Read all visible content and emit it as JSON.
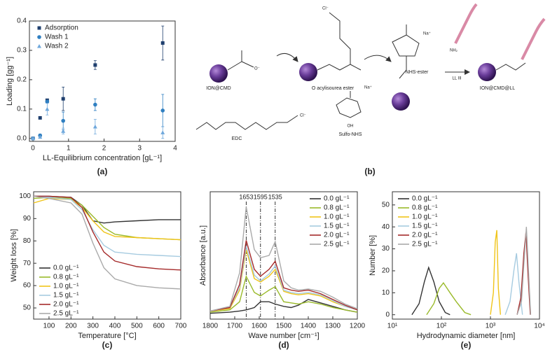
{
  "chart_data": [
    {
      "type": "scatter",
      "panel": "(a)",
      "xlabel": "LL-Equilibrium concentration [gL⁻¹]",
      "ylabel": "Loading [gg⁻¹]",
      "x": [
        0,
        0.2,
        0.4,
        0.85,
        1.75,
        3.65
      ],
      "series": [
        {
          "name": "Adsorption",
          "color": "#1f3f6e",
          "marker": "square",
          "values": [
            0,
            0.07,
            0.13,
            0.135,
            0.25,
            0.325
          ],
          "errors": [
            0,
            0,
            0,
            0.04,
            0.015,
            0.058
          ]
        },
        {
          "name": "Wash 1",
          "color": "#2f7fc1",
          "marker": "circle",
          "values": [
            0,
            0.01,
            0.125,
            0.06,
            0.115,
            0.095
          ],
          "errors": [
            0,
            0.005,
            0.005,
            0.03,
            0.02,
            0.055
          ]
        },
        {
          "name": "Wash 2",
          "color": "#6fa8dc",
          "marker": "triangle",
          "values": [
            0,
            0.005,
            0.1,
            0.025,
            0.04,
            0.02
          ],
          "errors": [
            0,
            0,
            0.02,
            0.01,
            0.025,
            0.02
          ]
        }
      ],
      "xlim": [
        -0.1,
        4
      ],
      "xticks": [
        0,
        1,
        2,
        3,
        4
      ],
      "ylim": [
        -0.01,
        0.4
      ],
      "yticks": [
        {
          "value": 0,
          "label": "0.0"
        },
        0.1,
        0.2,
        0.3,
        0.4
      ],
      "legend": "upper left"
    },
    {
      "type": "line",
      "panel": "(c)",
      "xlabel": "Temperature [°C]",
      "ylabel": "Weight loss [%]",
      "x": [
        30,
        100,
        200,
        250,
        300,
        350,
        400,
        500,
        600,
        700
      ],
      "series": [
        {
          "name": "0.0 gL⁻¹",
          "color": "#333333",
          "values": [
            100,
            100,
            99.5,
            96,
            89,
            88,
            88.5,
            89,
            89.5,
            89.5
          ]
        },
        {
          "name": "0.8 gL⁻¹",
          "color": "#9aba2a",
          "values": [
            99,
            99.5,
            99,
            96,
            91,
            86,
            83,
            81.5,
            81,
            80.5
          ]
        },
        {
          "name": "1.0 gL⁻¹",
          "color": "#f0c419",
          "values": [
            97,
            99,
            98.5,
            95,
            89,
            84,
            82,
            81.5,
            81,
            80.5
          ]
        },
        {
          "name": "1.5 gL⁻¹",
          "color": "#a6cbe0",
          "values": [
            100,
            99.5,
            98.5,
            94,
            85,
            78,
            75,
            74,
            73.5,
            73
          ]
        },
        {
          "name": "2.0 gL⁻¹",
          "color": "#a52a2a",
          "values": [
            100,
            100,
            99.5,
            95,
            84,
            75,
            71,
            68.5,
            67.5,
            67
          ]
        },
        {
          "name": "2.5 gL⁻¹",
          "color": "#aaaaaa",
          "values": [
            100,
            99,
            97,
            92,
            79,
            68,
            63,
            60,
            59,
            58.5
          ]
        }
      ],
      "xlim": [
        30,
        700
      ],
      "xticks": [
        100,
        200,
        300,
        400,
        500,
        600,
        700
      ],
      "ylim": [
        45,
        102
      ],
      "yticks": [
        50,
        60,
        70,
        80,
        90,
        100
      ],
      "legend": "lower left"
    },
    {
      "type": "line",
      "panel": "(d)",
      "xlabel": "Wave number [cm⁻¹]",
      "ylabel": "Absorbance [a.u.]",
      "x": [
        1800,
        1720,
        1680,
        1653,
        1620,
        1595,
        1560,
        1535,
        1500,
        1470,
        1440,
        1400,
        1350,
        1300,
        1250,
        1200
      ],
      "series": [
        {
          "name": "0.0 gL⁻¹",
          "color": "#333333",
          "values": [
            0,
            0.01,
            0.02,
            0.03,
            0.05,
            0.1,
            0.1,
            0.08,
            0.06,
            0.05,
            0.07,
            0.12,
            0.09,
            0.06,
            0.03,
            0.01
          ]
        },
        {
          "name": "0.8 gL⁻¹",
          "color": "#9aba2a",
          "values": [
            0.01,
            0.03,
            0.1,
            0.32,
            0.18,
            0.15,
            0.2,
            0.23,
            0.1,
            0.09,
            0.08,
            0.1,
            0.08,
            0.05,
            0.03,
            0.01
          ]
        },
        {
          "name": "1.0 gL⁻¹",
          "color": "#f0c419",
          "values": [
            0.02,
            0.04,
            0.2,
            0.55,
            0.3,
            0.27,
            0.32,
            0.38,
            0.19,
            0.17,
            0.16,
            0.17,
            0.15,
            0.1,
            0.06,
            0.03
          ]
        },
        {
          "name": "1.5 gL⁻¹",
          "color": "#a6cbe0",
          "values": [
            0.02,
            0.05,
            0.22,
            0.58,
            0.33,
            0.28,
            0.34,
            0.41,
            0.2,
            0.18,
            0.17,
            0.18,
            0.16,
            0.11,
            0.06,
            0.03
          ]
        },
        {
          "name": "2.0 gL⁻¹",
          "color": "#a52a2a",
          "values": [
            0.02,
            0.05,
            0.25,
            0.63,
            0.38,
            0.32,
            0.38,
            0.45,
            0.22,
            0.2,
            0.19,
            0.2,
            0.17,
            0.12,
            0.07,
            0.03
          ]
        },
        {
          "name": "2.5 gL⁻¹",
          "color": "#aaaaaa",
          "values": [
            0.02,
            0.06,
            0.35,
            0.92,
            0.55,
            0.48,
            0.5,
            0.62,
            0.28,
            0.22,
            0.2,
            0.21,
            0.19,
            0.14,
            0.08,
            0.04
          ]
        }
      ],
      "vlines": [
        1653,
        1595,
        1535
      ],
      "xlim": [
        1800,
        1200
      ],
      "xticks": [
        1800,
        1700,
        1600,
        1500,
        1400,
        1300,
        1200
      ],
      "ylim": [
        -0.05,
        1.05
      ],
      "legend": "upper right"
    },
    {
      "type": "line",
      "panel": "(e)",
      "xlabel": "Hydrodynamic diameter [nm]",
      "ylabel": "Number [%]",
      "xlog": true,
      "series": [
        {
          "name": "0.0 gL⁻¹",
          "color": "#333333",
          "x": [
            25,
            35,
            45,
            55,
            70,
            90,
            120,
            150
          ],
          "values": [
            0,
            5,
            15,
            21.5,
            15,
            6,
            1,
            0
          ]
        },
        {
          "name": "0.8 gL⁻¹",
          "color": "#9aba2a",
          "x": [
            50,
            70,
            90,
            110,
            150,
            200,
            300,
            400
          ],
          "values": [
            0,
            5,
            12,
            14.5,
            10,
            6,
            1,
            0
          ]
        },
        {
          "name": "1.0 gL⁻¹",
          "color": "#f0c419",
          "x": [
            1000,
            1150,
            1250,
            1350,
            1450,
            1600
          ],
          "values": [
            0,
            10,
            33,
            38.5,
            12,
            0
          ]
        },
        {
          "name": "1.5 gL⁻¹",
          "color": "#a6cbe0",
          "x": [
            2000,
            2500,
            3000,
            3400,
            3800,
            4500
          ],
          "values": [
            0,
            6,
            20,
            28,
            15,
            0
          ]
        },
        {
          "name": "2.0 gL⁻¹",
          "color": "#a52a2a",
          "x": [
            3500,
            4200,
            4800,
            5300,
            5800,
            6500
          ],
          "values": [
            0,
            8,
            28,
            37.5,
            20,
            0
          ]
        },
        {
          "name": "2.5 gL⁻¹",
          "color": "#aaaaaa",
          "x": [
            3500,
            4300,
            4900,
            5400,
            5900,
            6600
          ],
          "values": [
            0,
            6,
            26,
            40,
            22,
            0
          ]
        }
      ],
      "xlim": [
        10,
        10000
      ],
      "xticks": [
        {
          "value": 10,
          "label": "10¹"
        },
        {
          "value": 100,
          "label": "10²"
        },
        {
          "value": 1000,
          "label": "10³"
        },
        {
          "value": 10000,
          "label": "10⁴"
        }
      ],
      "ylim": [
        -2,
        56
      ],
      "yticks": [
        0,
        10,
        20,
        30,
        40,
        50
      ],
      "legend": "upper left"
    }
  ],
  "scheme": {
    "panel": "(b)",
    "ion_cmd": "ION@CMD",
    "acyl": "O acylisourea ester",
    "nhs_ester": "NHS-ester",
    "final": "ION@CMD@LL",
    "edc": "EDC",
    "sulfo": "Sulfo-NHS",
    "reagent": "LL III",
    "chloride": "Cl⁻",
    "sodium": "Na⁺",
    "amine": "NH₂",
    "oxyanion": "O⁻",
    "hydroxy": "OH"
  }
}
